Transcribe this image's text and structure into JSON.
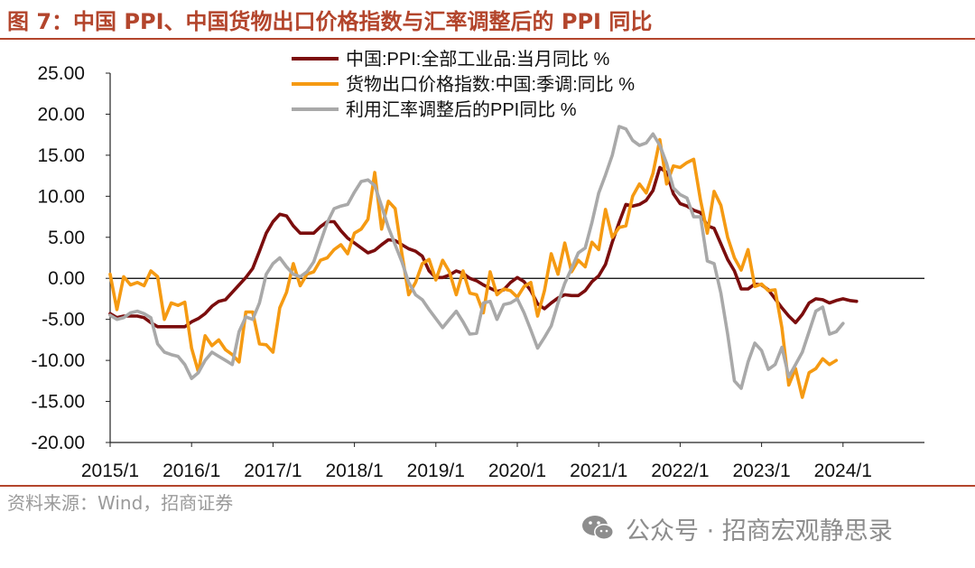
{
  "title": "图 7：中国 PPI、中国货物出口价格指数与汇率调整后的 PPI 同比",
  "source": "资料来源：Wind，招商证券",
  "watermark": {
    "text": "公众号 · 招商宏观静思录",
    "icon": "wechat-icon"
  },
  "colors": {
    "brand": "#b3452c",
    "ppi": "#7b0d0d",
    "export": "#f59a12",
    "fx": "#a9a9a9"
  },
  "chart_data": {
    "type": "line",
    "title": "",
    "xlabel": "",
    "ylabel": "",
    "ylim": [
      -20,
      25
    ],
    "yticks": [
      25,
      20,
      15,
      10,
      5,
      0,
      -5,
      -10,
      -15,
      -20
    ],
    "ytick_labels": [
      "25.00",
      "20.00",
      "15.00",
      "10.00",
      "5.00",
      "0.00",
      "-5.00",
      "-10.00",
      "-15.00",
      "-20.00"
    ],
    "x_start": "2015/1",
    "xtick_labels": [
      "2015/1",
      "2016/1",
      "2017/1",
      "2018/1",
      "2019/1",
      "2020/1",
      "2021/1",
      "2022/1",
      "2023/1",
      "2024/1"
    ],
    "zero_line": true,
    "grid": false,
    "legend_position": "top-center",
    "series": [
      {
        "name": "中国:PPI:全部工业品:当月同比 %",
        "color": "#7b0d0d",
        "values": [
          -4.3,
          -4.8,
          -4.6,
          -4.6,
          -4.6,
          -4.8,
          -5.4,
          -5.9,
          -5.9,
          -5.9,
          -5.9,
          -5.9,
          -5.3,
          -4.9,
          -4.3,
          -3.4,
          -2.8,
          -2.6,
          -1.7,
          -0.8,
          0.1,
          1.2,
          3.3,
          5.5,
          6.9,
          7.8,
          7.6,
          6.4,
          5.5,
          5.5,
          5.5,
          6.3,
          6.9,
          6.9,
          5.8,
          4.9,
          4.3,
          3.7,
          3.1,
          3.4,
          4.1,
          4.7,
          4.6,
          4.1,
          3.6,
          3.3,
          2.7,
          0.9,
          0.1,
          0.1,
          0.4,
          0.9,
          0.6,
          0.0,
          -0.3,
          -0.8,
          -1.2,
          -1.6,
          -1.4,
          -0.5,
          0.1,
          -0.4,
          -1.5,
          -3.1,
          -3.7,
          -3.0,
          -2.4,
          -2.0,
          -2.1,
          -2.1,
          -1.5,
          -0.4,
          0.3,
          1.7,
          4.4,
          6.8,
          9.0,
          8.8,
          9.0,
          9.5,
          10.7,
          13.5,
          12.9,
          10.3,
          9.1,
          8.8,
          8.3,
          8.0,
          6.4,
          6.1,
          4.2,
          2.3,
          0.9,
          -1.3,
          -1.3,
          -0.7,
          -0.8,
          -1.4,
          -2.5,
          -3.6,
          -4.6,
          -5.4,
          -4.4,
          -3.0,
          -2.5,
          -2.6,
          -3.0,
          -2.7,
          -2.5,
          -2.7,
          -2.8
        ]
      },
      {
        "name": "货物出口价格指数:中国:季调:同比 %",
        "color": "#f59a12",
        "values": [
          0.5,
          -3.8,
          0.2,
          -0.8,
          -0.5,
          -0.9,
          0.9,
          0.2,
          -5.0,
          -3.0,
          -3.3,
          -2.9,
          -8.5,
          -11.4,
          -7.0,
          -8.2,
          -7.5,
          -8.7,
          -9.3,
          -10.2,
          -4.1,
          -4.1,
          -8.0,
          -8.1,
          -9.0,
          -3.6,
          -1.7,
          1.8,
          -0.9,
          0.5,
          0.8,
          2.2,
          2.5,
          3.5,
          4.1,
          3.0,
          5.5,
          6.0,
          7.2,
          12.9,
          6.0,
          9.4,
          8.5,
          3.0,
          -2.0,
          -0.5,
          1.8,
          2.3,
          -0.2,
          2.2,
          0.8,
          -2.0,
          0.9,
          -1.8,
          -2.0,
          -4.2,
          0.8,
          -2.0,
          -1.3,
          -1.5,
          -2.3,
          -1.0,
          -0.5,
          -4.6,
          -1.5,
          3.0,
          0.5,
          4.3,
          0.8,
          2.2,
          1.4,
          4.4,
          3.5,
          8.4,
          5.0,
          6.2,
          6.4,
          10.0,
          11.5,
          10.4,
          12.8,
          16.9,
          11.5,
          13.7,
          13.5,
          14.1,
          14.5,
          9.5,
          5.5,
          10.6,
          8.9,
          5.0,
          2.5,
          1.0,
          3.5,
          -1.0,
          -0.7,
          -1.5,
          -1.4,
          -6.0,
          -13.0,
          -11.0,
          -14.5,
          -11.5,
          -11.0,
          -9.8,
          -10.5,
          -10.0
        ]
      },
      {
        "name": "利用汇率调整后的PPI同比 %",
        "color": "#a9a9a9",
        "values": [
          -4.5,
          -5.0,
          -4.8,
          -4.2,
          -4.0,
          -4.3,
          -4.8,
          -8.0,
          -9.0,
          -9.3,
          -9.5,
          -10.5,
          -12.2,
          -11.5,
          -10.0,
          -9.0,
          -9.5,
          -10.0,
          -10.5,
          -6.5,
          -4.7,
          -5.0,
          -3.0,
          0.5,
          1.8,
          2.5,
          1.4,
          0.5,
          0.2,
          0.8,
          2.0,
          4.4,
          6.8,
          8.5,
          8.8,
          9.0,
          10.5,
          11.8,
          12.0,
          11.3,
          8.8,
          6.2,
          4.1,
          2.0,
          -0.5,
          -2.0,
          -2.6,
          -3.8,
          -4.9,
          -6.0,
          -5.0,
          -4.0,
          -5.3,
          -6.8,
          -6.7,
          -3.0,
          -2.8,
          -5.0,
          -3.2,
          -3.0,
          -2.5,
          -4.2,
          -6.3,
          -8.5,
          -7.2,
          -5.8,
          -3.0,
          -0.6,
          1.2,
          3.1,
          3.7,
          6.8,
          10.4,
          12.6,
          15.0,
          18.5,
          18.2,
          16.8,
          16.2,
          16.5,
          17.6,
          16.2,
          14.0,
          11.0,
          10.2,
          9.8,
          7.5,
          7.5,
          2.1,
          1.8,
          -1.8,
          -6.8,
          -12.5,
          -13.4,
          -10.2,
          -7.9,
          -8.8,
          -11.1,
          -10.5,
          -8.4,
          -12.0,
          -10.5,
          -9.0,
          -6.5,
          -4.0,
          -3.5,
          -6.8,
          -6.5,
          -5.5
        ]
      }
    ]
  }
}
